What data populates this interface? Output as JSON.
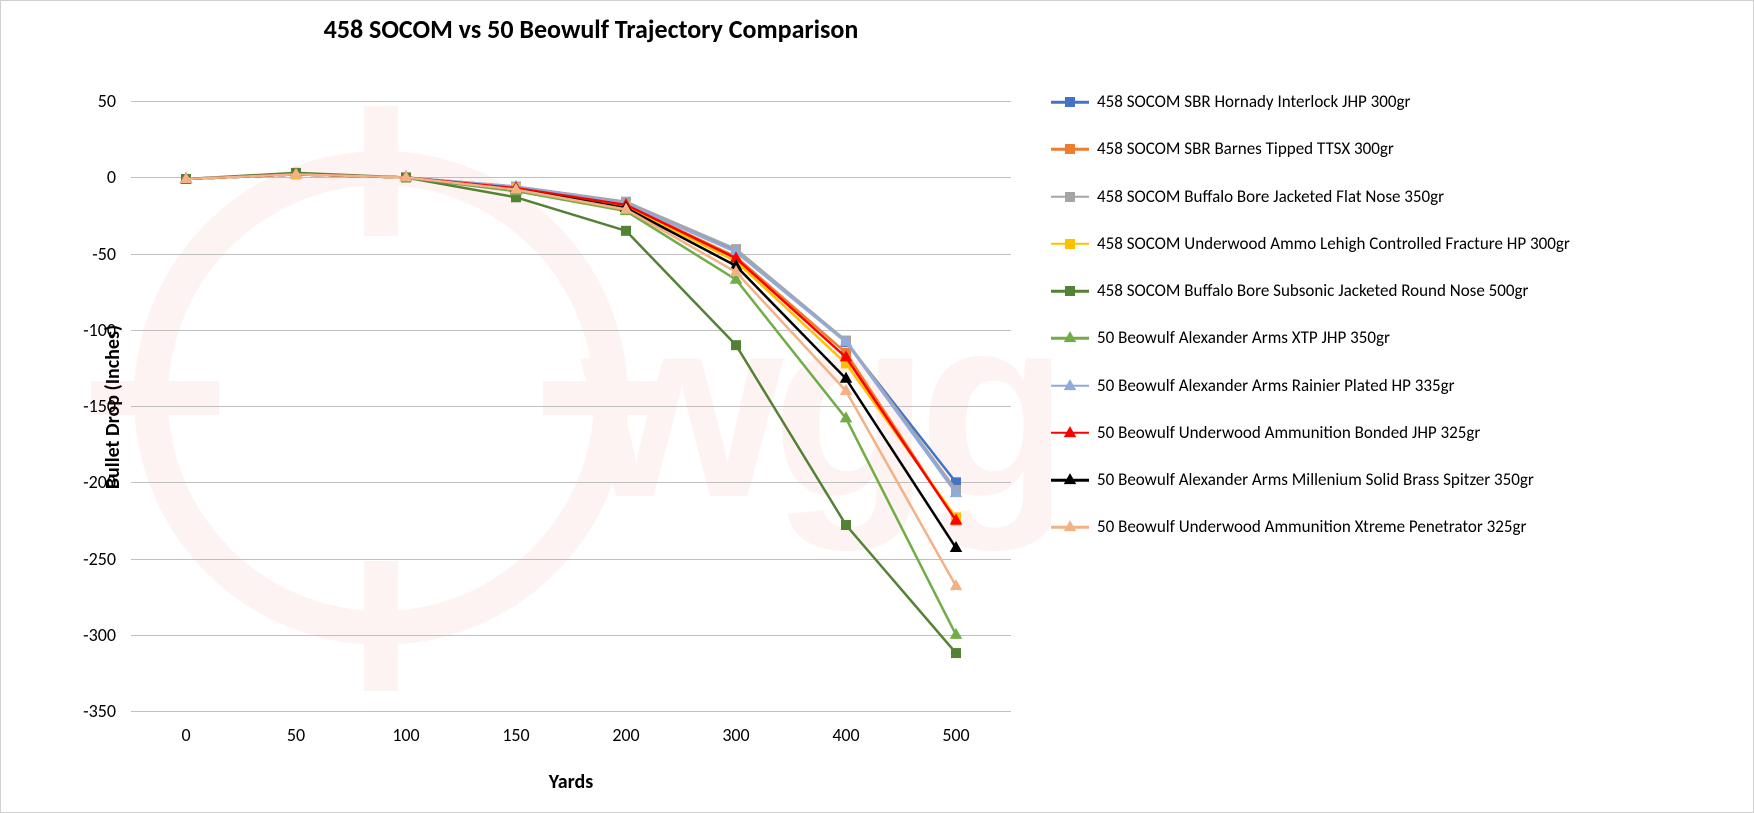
{
  "chart": {
    "type": "line",
    "title": "458 SOCOM vs 50 Beowulf Trajectory Comparison",
    "title_fontsize": 26,
    "title_fontweight": "bold",
    "x_axis_label": "Yards",
    "y_axis_label": "Bullet Drop (Inches)",
    "axis_label_fontsize": 20,
    "tick_fontsize": 18,
    "legend_fontsize": 17,
    "background_color": "#ffffff",
    "grid_color": "#bfbfbf",
    "watermark_text": "wggun",
    "watermark_color": "#e74c3c",
    "watermark_opacity": 0.06,
    "x_categories": [
      "0",
      "50",
      "100",
      "150",
      "200",
      "300",
      "400",
      "500"
    ],
    "y_ticks": [
      50,
      0,
      -50,
      -100,
      -150,
      -200,
      -250,
      -300,
      -350
    ],
    "ylim_min": -350,
    "ylim_max": 60,
    "series": [
      {
        "label": "458 SOCOM SBR Hornady Interlock JHP 300gr",
        "color": "#4472c4",
        "marker": "square",
        "values": [
          -1,
          2,
          0,
          -6,
          -16,
          -48,
          -108,
          -200
        ]
      },
      {
        "label": "458 SOCOM SBR Barnes Tipped TTSX 300gr",
        "color": "#ed7d31",
        "marker": "square",
        "values": [
          -1,
          2,
          0,
          -7,
          -18,
          -52,
          -115,
          -225
        ]
      },
      {
        "label": "458 SOCOM Buffalo Bore Jacketed Flat Nose 350gr",
        "color": "#a5a5a5",
        "marker": "square",
        "values": [
          -1,
          2,
          0,
          -6,
          -16,
          -47,
          -107,
          -205
        ]
      },
      {
        "label": "458 SOCOM Underwood Ammo Lehigh Controlled Fracture HP 300gr",
        "color": "#ffc000",
        "marker": "square",
        "values": [
          -1,
          2,
          0,
          -7,
          -19,
          -55,
          -122,
          -223
        ]
      },
      {
        "label": "458 SOCOM Buffalo Bore Subsonic Jacketed Round Nose 500gr",
        "color": "#548235",
        "marker": "square",
        "values": [
          -1,
          3,
          0,
          -13,
          -35,
          -110,
          -228,
          -312
        ]
      },
      {
        "label": "50 Beowulf Alexander Arms XTP JHP 350gr",
        "color": "#70ad47",
        "marker": "triangle",
        "values": [
          -1,
          2,
          0,
          -9,
          -22,
          -67,
          -158,
          -300
        ]
      },
      {
        "label": "50 Beowulf Alexander Arms Rainier Plated HP 335gr",
        "color": "#8faadc",
        "marker": "triangle",
        "values": [
          -1,
          2,
          0,
          -6,
          -17,
          -49,
          -108,
          -207
        ]
      },
      {
        "label": "50 Beowulf Underwood Ammunition Bonded JHP 325gr",
        "color": "#ff0000",
        "marker": "triangle",
        "values": [
          -1,
          2,
          0,
          -7,
          -18,
          -53,
          -118,
          -225
        ]
      },
      {
        "label": "50 Beowulf Alexander Arms Millenium Solid Brass Spitzer 350gr",
        "color": "#000000",
        "marker": "triangle",
        "values": [
          -1,
          2,
          0,
          -8,
          -20,
          -58,
          -132,
          -243
        ]
      },
      {
        "label": "50 Beowulf Underwood Ammunition Xtreme Penetrator 325gr",
        "color": "#f4b183",
        "marker": "triangle",
        "values": [
          -1,
          2,
          0,
          -8,
          -21,
          -62,
          -140,
          -268
        ]
      }
    ]
  }
}
